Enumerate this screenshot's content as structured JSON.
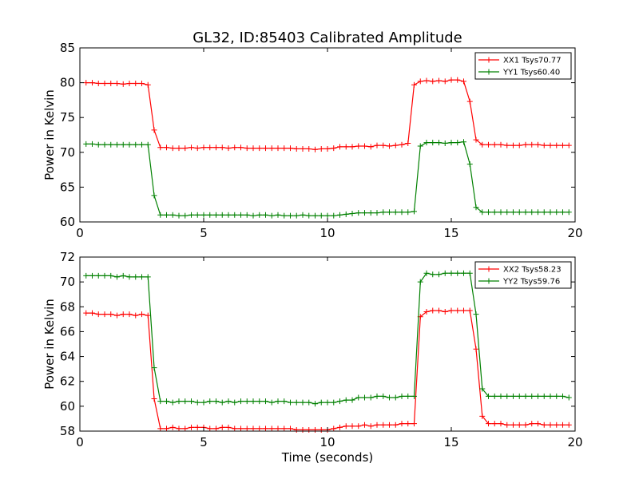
{
  "title": "GL32, ID:85403 Calibrated Amplitude",
  "chart_data": [
    {
      "type": "line",
      "ylabel": "Power in Kelvin",
      "xlabel": "",
      "xlim": [
        0,
        20
      ],
      "ylim": [
        60,
        85
      ],
      "xticks": [
        0,
        5,
        10,
        15,
        20
      ],
      "yticks": [
        60,
        65,
        70,
        75,
        80,
        85
      ],
      "legend": "top-right",
      "series": [
        {
          "name": "XX1 Tsys70.77",
          "color": "#ff0000",
          "x": [
            0.25,
            0.5,
            0.75,
            1.0,
            1.25,
            1.5,
            1.75,
            2.0,
            2.25,
            2.5,
            2.75,
            3.0,
            3.25,
            3.5,
            3.75,
            4.0,
            4.25,
            4.5,
            4.75,
            5.0,
            5.25,
            5.5,
            5.75,
            6.0,
            6.25,
            6.5,
            6.75,
            7.0,
            7.25,
            7.5,
            7.75,
            8.0,
            8.25,
            8.5,
            8.75,
            9.0,
            9.25,
            9.5,
            9.75,
            10.0,
            10.25,
            10.5,
            10.75,
            11.0,
            11.25,
            11.5,
            11.75,
            12.0,
            12.25,
            12.5,
            12.75,
            13.0,
            13.25,
            13.5,
            13.75,
            14.0,
            14.25,
            14.5,
            14.75,
            15.0,
            15.25,
            15.5,
            15.75,
            16.0,
            16.25,
            16.5,
            16.75,
            17.0,
            17.25,
            17.5,
            17.75,
            18.0,
            18.25,
            18.5,
            18.75,
            19.0,
            19.25,
            19.5,
            19.75
          ],
          "y": [
            80.0,
            80.0,
            79.9,
            79.9,
            79.9,
            79.9,
            79.8,
            79.9,
            79.9,
            79.9,
            79.7,
            73.2,
            70.7,
            70.7,
            70.6,
            70.6,
            70.6,
            70.7,
            70.6,
            70.7,
            70.7,
            70.7,
            70.7,
            70.6,
            70.7,
            70.7,
            70.6,
            70.6,
            70.6,
            70.6,
            70.6,
            70.6,
            70.6,
            70.6,
            70.5,
            70.5,
            70.5,
            70.4,
            70.5,
            70.5,
            70.6,
            70.8,
            70.8,
            70.8,
            70.9,
            70.9,
            70.8,
            71.0,
            71.0,
            70.9,
            71.0,
            71.1,
            71.3,
            79.7,
            80.2,
            80.3,
            80.2,
            80.3,
            80.2,
            80.4,
            80.4,
            80.2,
            77.3,
            71.8,
            71.1,
            71.1,
            71.1,
            71.1,
            71.0,
            71.0,
            71.0,
            71.1,
            71.1,
            71.1,
            71.0,
            71.0,
            71.0,
            71.0,
            71.0
          ]
        },
        {
          "name": "YY1 Tsys60.40",
          "color": "#008000",
          "x": [
            0.25,
            0.5,
            0.75,
            1.0,
            1.25,
            1.5,
            1.75,
            2.0,
            2.25,
            2.5,
            2.75,
            3.0,
            3.25,
            3.5,
            3.75,
            4.0,
            4.25,
            4.5,
            4.75,
            5.0,
            5.25,
            5.5,
            5.75,
            6.0,
            6.25,
            6.5,
            6.75,
            7.0,
            7.25,
            7.5,
            7.75,
            8.0,
            8.25,
            8.5,
            8.75,
            9.0,
            9.25,
            9.5,
            9.75,
            10.0,
            10.25,
            10.5,
            10.75,
            11.0,
            11.25,
            11.5,
            11.75,
            12.0,
            12.25,
            12.5,
            12.75,
            13.0,
            13.25,
            13.5,
            13.75,
            14.0,
            14.25,
            14.5,
            14.75,
            15.0,
            15.25,
            15.5,
            15.75,
            16.0,
            16.25,
            16.5,
            16.75,
            17.0,
            17.25,
            17.5,
            17.75,
            18.0,
            18.25,
            18.5,
            18.75,
            19.0,
            19.25,
            19.5,
            19.75
          ],
          "y": [
            71.2,
            71.2,
            71.1,
            71.1,
            71.1,
            71.1,
            71.1,
            71.1,
            71.1,
            71.1,
            71.1,
            63.8,
            61.0,
            61.0,
            61.0,
            60.9,
            60.9,
            61.0,
            61.0,
            61.0,
            61.0,
            61.0,
            61.0,
            61.0,
            61.0,
            61.0,
            61.0,
            60.9,
            61.0,
            61.0,
            60.9,
            61.0,
            60.9,
            60.9,
            60.9,
            61.0,
            60.9,
            60.9,
            60.9,
            60.9,
            60.9,
            61.0,
            61.1,
            61.2,
            61.3,
            61.3,
            61.3,
            61.3,
            61.4,
            61.4,
            61.4,
            61.4,
            61.4,
            61.5,
            70.9,
            71.4,
            71.4,
            71.4,
            71.3,
            71.4,
            71.4,
            71.5,
            68.3,
            62.1,
            61.4,
            61.4,
            61.4,
            61.4,
            61.4,
            61.4,
            61.4,
            61.4,
            61.4,
            61.4,
            61.4,
            61.4,
            61.4,
            61.4,
            61.4
          ]
        }
      ]
    },
    {
      "type": "line",
      "ylabel": "Power in Kelvin",
      "xlabel": "Time (seconds)",
      "xlim": [
        0,
        20
      ],
      "ylim": [
        58,
        72
      ],
      "xticks": [
        0,
        5,
        10,
        15,
        20
      ],
      "yticks": [
        58,
        60,
        62,
        64,
        66,
        68,
        70,
        72
      ],
      "legend": "top-right",
      "series": [
        {
          "name": "XX2 Tsys58.23",
          "color": "#ff0000",
          "x": [
            0.25,
            0.5,
            0.75,
            1.0,
            1.25,
            1.5,
            1.75,
            2.0,
            2.25,
            2.5,
            2.75,
            3.0,
            3.25,
            3.5,
            3.75,
            4.0,
            4.25,
            4.5,
            4.75,
            5.0,
            5.25,
            5.5,
            5.75,
            6.0,
            6.25,
            6.5,
            6.75,
            7.0,
            7.25,
            7.5,
            7.75,
            8.0,
            8.25,
            8.5,
            8.75,
            9.0,
            9.25,
            9.5,
            9.75,
            10.0,
            10.25,
            10.5,
            10.75,
            11.0,
            11.25,
            11.5,
            11.75,
            12.0,
            12.25,
            12.5,
            12.75,
            13.0,
            13.25,
            13.5,
            13.75,
            14.0,
            14.25,
            14.5,
            14.75,
            15.0,
            15.25,
            15.5,
            15.75,
            16.0,
            16.25,
            16.5,
            16.75,
            17.0,
            17.25,
            17.5,
            17.75,
            18.0,
            18.25,
            18.5,
            18.75,
            19.0,
            19.25,
            19.5,
            19.75
          ],
          "y": [
            67.5,
            67.5,
            67.4,
            67.4,
            67.4,
            67.3,
            67.4,
            67.4,
            67.3,
            67.4,
            67.3,
            60.6,
            58.2,
            58.2,
            58.3,
            58.2,
            58.2,
            58.3,
            58.3,
            58.3,
            58.2,
            58.2,
            58.3,
            58.3,
            58.2,
            58.2,
            58.2,
            58.2,
            58.2,
            58.2,
            58.2,
            58.2,
            58.2,
            58.2,
            58.1,
            58.1,
            58.1,
            58.1,
            58.1,
            58.1,
            58.2,
            58.3,
            58.4,
            58.4,
            58.4,
            58.5,
            58.4,
            58.5,
            58.5,
            58.5,
            58.5,
            58.6,
            58.6,
            58.6,
            67.2,
            67.6,
            67.7,
            67.7,
            67.6,
            67.7,
            67.7,
            67.7,
            67.7,
            64.6,
            59.2,
            58.6,
            58.6,
            58.6,
            58.5,
            58.5,
            58.5,
            58.5,
            58.6,
            58.6,
            58.5,
            58.5,
            58.5,
            58.5,
            58.5
          ]
        },
        {
          "name": "YY2 Tsys59.76",
          "color": "#008000",
          "x": [
            0.25,
            0.5,
            0.75,
            1.0,
            1.25,
            1.5,
            1.75,
            2.0,
            2.25,
            2.5,
            2.75,
            3.0,
            3.25,
            3.5,
            3.75,
            4.0,
            4.25,
            4.5,
            4.75,
            5.0,
            5.25,
            5.5,
            5.75,
            6.0,
            6.25,
            6.5,
            6.75,
            7.0,
            7.25,
            7.5,
            7.75,
            8.0,
            8.25,
            8.5,
            8.75,
            9.0,
            9.25,
            9.5,
            9.75,
            10.0,
            10.25,
            10.5,
            10.75,
            11.0,
            11.25,
            11.5,
            11.75,
            12.0,
            12.25,
            12.5,
            12.75,
            13.0,
            13.25,
            13.5,
            13.75,
            14.0,
            14.25,
            14.5,
            14.75,
            15.0,
            15.25,
            15.5,
            15.75,
            16.0,
            16.25,
            16.5,
            16.75,
            17.0,
            17.25,
            17.5,
            17.75,
            18.0,
            18.25,
            18.5,
            18.75,
            19.0,
            19.25,
            19.5,
            19.75
          ],
          "y": [
            70.5,
            70.5,
            70.5,
            70.5,
            70.5,
            70.4,
            70.5,
            70.4,
            70.4,
            70.4,
            70.4,
            63.1,
            60.4,
            60.4,
            60.3,
            60.4,
            60.4,
            60.4,
            60.3,
            60.3,
            60.4,
            60.4,
            60.3,
            60.4,
            60.3,
            60.4,
            60.4,
            60.4,
            60.4,
            60.4,
            60.3,
            60.4,
            60.4,
            60.3,
            60.3,
            60.3,
            60.3,
            60.2,
            60.3,
            60.3,
            60.3,
            60.4,
            60.5,
            60.5,
            60.7,
            60.7,
            60.7,
            60.8,
            60.8,
            60.7,
            60.7,
            60.8,
            60.8,
            60.8,
            70.0,
            70.7,
            70.6,
            70.6,
            70.7,
            70.7,
            70.7,
            70.7,
            70.7,
            67.4,
            61.4,
            60.8,
            60.8,
            60.8,
            60.8,
            60.8,
            60.8,
            60.8,
            60.8,
            60.8,
            60.8,
            60.8,
            60.8,
            60.8,
            60.7
          ]
        }
      ]
    }
  ]
}
